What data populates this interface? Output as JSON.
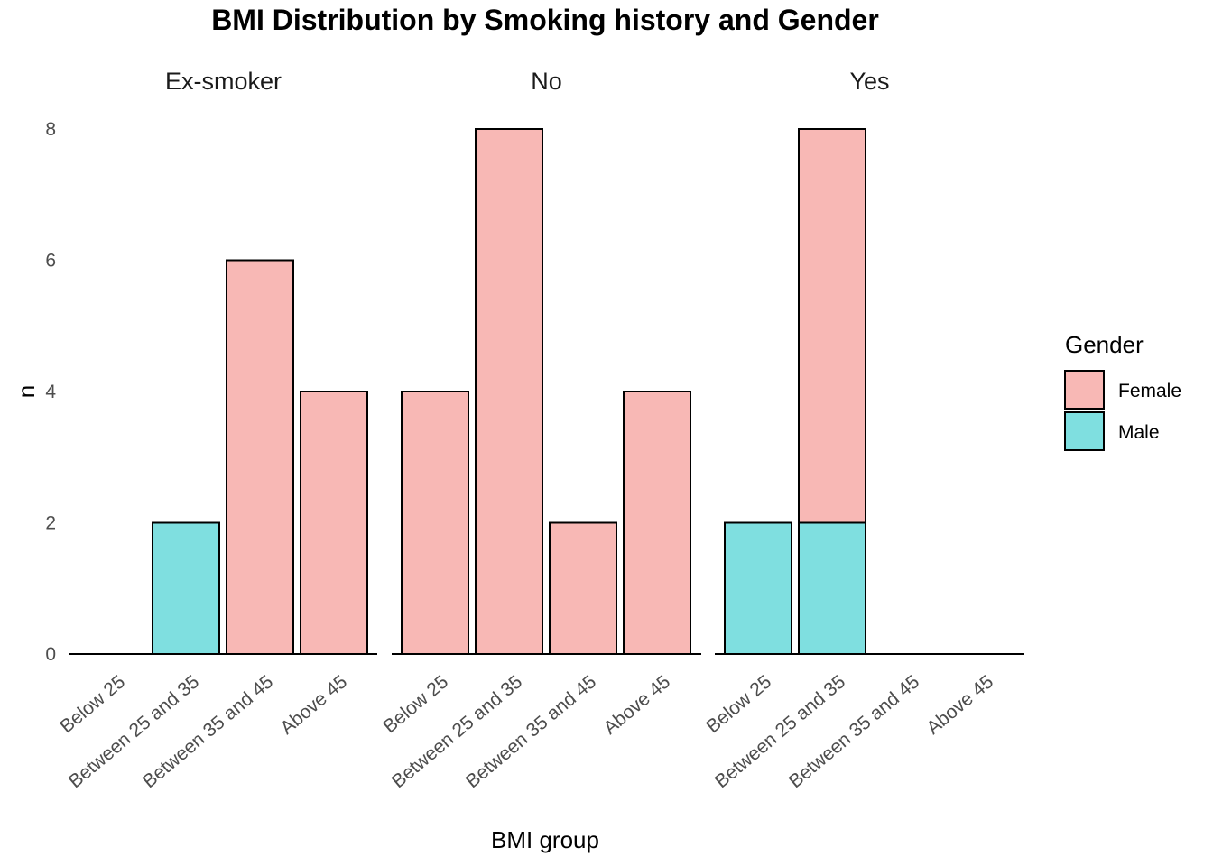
{
  "chart_data": {
    "type": "bar",
    "title": "BMI Distribution by Smoking history and Gender",
    "xlabel": "BMI group",
    "ylabel": "n",
    "ylim": [
      0,
      8
    ],
    "yticks": [
      "0",
      "2",
      "4",
      "6",
      "8"
    ],
    "stacked": true,
    "grid": false,
    "legend_position": "right",
    "categories": [
      "Below 25",
      "Between 25 and 35",
      "Between 35 and 45",
      "Above 45"
    ],
    "legend": {
      "title": "Gender",
      "entries": [
        {
          "name": "Female",
          "color": "#F8B8B5"
        },
        {
          "name": "Male",
          "color": "#7FDFE0"
        }
      ]
    },
    "facets": [
      {
        "label": "Ex-smoker",
        "series": [
          {
            "name": "Female",
            "values": [
              0,
              0,
              6,
              4
            ]
          },
          {
            "name": "Male",
            "values": [
              0,
              2,
              0,
              0
            ]
          }
        ]
      },
      {
        "label": "No",
        "series": [
          {
            "name": "Female",
            "values": [
              4,
              8,
              2,
              4
            ]
          },
          {
            "name": "Male",
            "values": [
              0,
              0,
              0,
              0
            ]
          }
        ]
      },
      {
        "label": "Yes",
        "series": [
          {
            "name": "Female",
            "values": [
              0,
              6,
              0,
              0
            ]
          },
          {
            "name": "Male",
            "values": [
              2,
              2,
              0,
              0
            ]
          }
        ]
      }
    ]
  }
}
